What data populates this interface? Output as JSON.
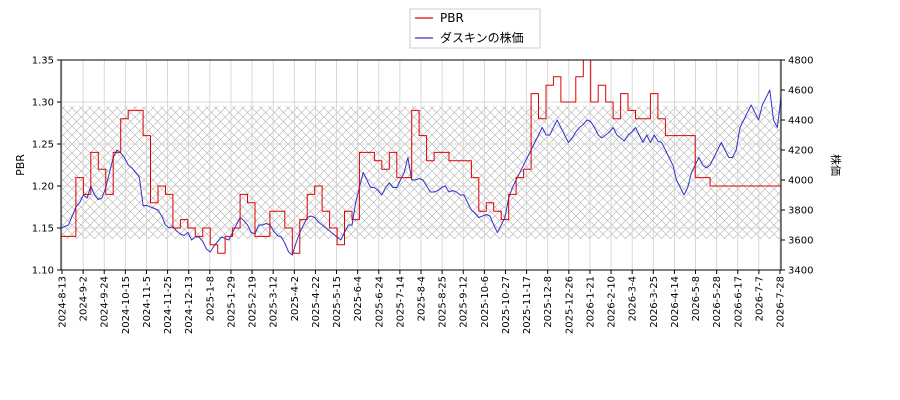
{
  "chart_data": {
    "type": "line",
    "x_ticks": [
      "2024-8-13",
      "2024-9-2",
      "2024-9-24",
      "2024-10-15",
      "2024-11-5",
      "2024-11-25",
      "2024-12-13",
      "2025-1-8",
      "2025-1-29",
      "2025-2-19",
      "2025-3-12",
      "2025-4-2",
      "2025-4-22",
      "2025-5-15",
      "2025-6-4",
      "2025-6-24",
      "2025-7-14",
      "2025-8-4",
      "2025-8-25",
      "2025-9-12",
      "2025-10-6",
      "2025-10-27",
      "2025-11-17",
      "2025-12-8",
      "2025-12-26",
      "2026-1-21",
      "2026-2-10",
      "2026-3-4",
      "2026-3-25",
      "2026-4-14",
      "2026-5-8",
      "2026-5-28",
      "2026-6-17",
      "2026-7-7",
      "2026-7-28"
    ],
    "ylabel_left": "PBR",
    "ylabel_right": "株価",
    "y_left_ticks": [
      "1.10",
      "1.15",
      "1.20",
      "1.25",
      "1.30",
      "1.35"
    ],
    "y_right_ticks": [
      "3400",
      "3600",
      "3800",
      "4000",
      "4200",
      "4400",
      "4600",
      "4800"
    ],
    "ylim_left": [
      1.1,
      1.35
    ],
    "ylim_right": [
      3400,
      4800
    ],
    "hatch_band_pbr": [
      1.137,
      1.295
    ],
    "grid": true,
    "legend_position": "top-center",
    "colors": {
      "pbr": "#dd0000",
      "price": "#3333cc",
      "hatch": "#b0b0b0"
    },
    "series": [
      {
        "name": "PBR",
        "axis": "left",
        "values": [
          1.14,
          1.14,
          1.14,
          1.14,
          1.21,
          1.21,
          1.19,
          1.19,
          1.24,
          1.24,
          1.22,
          1.22,
          1.19,
          1.19,
          1.24,
          1.24,
          1.28,
          1.28,
          1.29,
          1.29,
          1.29,
          1.29,
          1.26,
          1.26,
          1.18,
          1.18,
          1.2,
          1.2,
          1.19,
          1.19,
          1.15,
          1.15,
          1.16,
          1.16,
          1.15,
          1.15,
          1.14,
          1.14,
          1.15,
          1.15,
          1.13,
          1.13,
          1.12,
          1.12,
          1.14,
          1.14,
          1.15,
          1.15,
          1.19,
          1.19,
          1.18,
          1.18,
          1.14,
          1.14,
          1.14,
          1.14,
          1.17,
          1.17,
          1.17,
          1.17,
          1.15,
          1.15,
          1.12,
          1.12,
          1.16,
          1.16,
          1.19,
          1.19,
          1.2,
          1.2,
          1.17,
          1.17,
          1.15,
          1.15,
          1.13,
          1.13,
          1.17,
          1.17,
          1.16,
          1.16,
          1.24,
          1.24,
          1.24,
          1.24,
          1.23,
          1.23,
          1.22,
          1.22,
          1.24,
          1.24,
          1.21,
          1.21,
          1.21,
          1.21,
          1.29,
          1.29,
          1.26,
          1.26,
          1.23,
          1.23,
          1.24,
          1.24,
          1.24,
          1.24,
          1.23,
          1.23,
          1.23,
          1.23,
          1.23,
          1.23,
          1.21,
          1.21,
          1.17,
          1.17,
          1.18,
          1.18,
          1.17,
          1.17,
          1.16,
          1.16,
          1.19,
          1.19,
          1.21,
          1.21,
          1.22,
          1.22,
          1.31,
          1.31,
          1.28,
          1.28,
          1.32,
          1.32,
          1.33,
          1.33,
          1.3,
          1.3,
          1.3,
          1.3,
          1.33,
          1.33,
          1.35,
          1.35,
          1.3,
          1.3,
          1.32,
          1.32,
          1.3,
          1.3,
          1.28,
          1.28,
          1.31,
          1.31,
          1.29,
          1.29,
          1.28,
          1.28,
          1.28,
          1.28,
          1.31,
          1.31,
          1.28,
          1.28,
          1.26,
          1.26,
          1.26,
          1.26,
          1.26,
          1.26,
          1.26,
          1.26,
          1.21,
          1.21,
          1.21,
          1.21,
          1.2,
          1.2,
          1.2,
          1.2,
          1.2,
          1.2,
          1.2,
          1.2,
          1.2,
          1.2,
          1.2,
          1.2,
          1.2,
          1.2,
          1.2,
          1.2,
          1.2,
          1.2,
          1.2,
          1.2
        ]
      },
      {
        "name": "ダスキンの株価",
        "axis": "right",
        "values": [
          3680,
          3690,
          3700,
          3760,
          3820,
          3850,
          3900,
          3880,
          3960,
          3900,
          3870,
          3880,
          3950,
          4050,
          4150,
          4200,
          4180,
          4150,
          4100,
          4080,
          4050,
          4020,
          3830,
          3830,
          3820,
          3810,
          3800,
          3760,
          3700,
          3680,
          3690,
          3660,
          3640,
          3630,
          3650,
          3600,
          3620,
          3620,
          3590,
          3540,
          3520,
          3560,
          3590,
          3620,
          3610,
          3600,
          3650,
          3700,
          3750,
          3730,
          3700,
          3650,
          3640,
          3700,
          3700,
          3710,
          3700,
          3660,
          3630,
          3620,
          3580,
          3520,
          3500,
          3580,
          3650,
          3700,
          3750,
          3760,
          3750,
          3720,
          3700,
          3680,
          3660,
          3640,
          3620,
          3600,
          3650,
          3700,
          3700,
          3850,
          3950,
          4050,
          4000,
          3950,
          3950,
          3930,
          3900,
          3950,
          3980,
          3950,
          3950,
          4000,
          4050,
          4150,
          4000,
          4000,
          4010,
          4000,
          3960,
          3920,
          3920,
          3930,
          3950,
          3960,
          3920,
          3930,
          3920,
          3900,
          3900,
          3850,
          3800,
          3780,
          3750,
          3760,
          3770,
          3760,
          3700,
          3650,
          3700,
          3750,
          3880,
          3950,
          4000,
          4050,
          4100,
          4150,
          4200,
          4250,
          4300,
          4350,
          4300,
          4300,
          4350,
          4400,
          4350,
          4300,
          4250,
          4280,
          4320,
          4350,
          4370,
          4400,
          4390,
          4350,
          4300,
          4280,
          4300,
          4320,
          4350,
          4300,
          4280,
          4260,
          4300,
          4320,
          4350,
          4300,
          4250,
          4300,
          4250,
          4300,
          4260,
          4250,
          4200,
          4150,
          4100,
          4000,
          3950,
          3900,
          3950,
          4050,
          4100,
          4150,
          4100,
          4080,
          4100,
          4150,
          4200,
          4250,
          4200,
          4150,
          4150,
          4200,
          4350,
          4400,
          4450,
          4500,
          4450,
          4400,
          4500,
          4550,
          4600,
          4400,
          4350,
          4550
        ]
      }
    ]
  }
}
